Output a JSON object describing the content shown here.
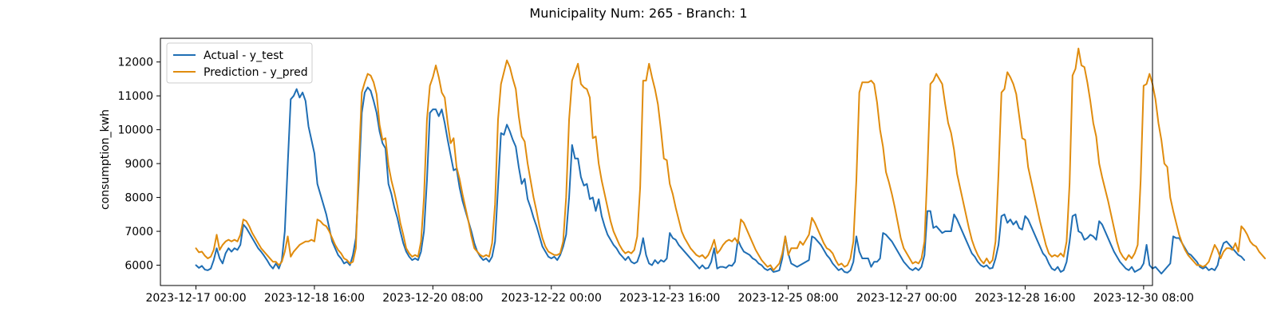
{
  "chart_data": {
    "type": "line",
    "title": "Municipality Num: 265 - Branch: 1",
    "xlabel": "",
    "ylabel": "consumption_kwh",
    "x_start": "2023-12-17 00:00",
    "x_step_hours": 1,
    "xlim_index": [
      -12,
      323
    ],
    "ylim": [
      5400,
      12700
    ],
    "yticks": [
      6000,
      7000,
      8000,
      9000,
      10000,
      11000,
      12000
    ],
    "xticks": [
      {
        "index": 0,
        "label": "2023-12-17 00:00"
      },
      {
        "index": 40,
        "label": "2023-12-18 16:00"
      },
      {
        "index": 80,
        "label": "2023-12-20 08:00"
      },
      {
        "index": 120,
        "label": "2023-12-22 00:00"
      },
      {
        "index": 160,
        "label": "2023-12-23 16:00"
      },
      {
        "index": 200,
        "label": "2023-12-25 08:00"
      },
      {
        "index": 240,
        "label": "2023-12-27 00:00"
      },
      {
        "index": 280,
        "label": "2023-12-28 16:00"
      },
      {
        "index": 320,
        "label": "2023-12-30 08:00"
      },
      {
        "index": 360,
        "label": ""
      }
    ],
    "grid": false,
    "legend": {
      "location": "upper-left"
    },
    "series": [
      {
        "name": "Actual - y_test",
        "color": "#1f6eb4",
        "values": [
          6000,
          5920,
          5980,
          5870,
          5850,
          5900,
          6150,
          6500,
          6200,
          6050,
          6350,
          6500,
          6400,
          6500,
          6450,
          6600,
          7200,
          7100,
          6950,
          6800,
          6650,
          6500,
          6400,
          6280,
          6150,
          6000,
          5900,
          6050,
          5900,
          6150,
          7000,
          9000,
          10900,
          11000,
          11200,
          10950,
          11100,
          10850,
          10100,
          9700,
          9300,
          8400,
          8100,
          7800,
          7500,
          7100,
          6700,
          6500,
          6300,
          6200,
          6050,
          6100,
          6000,
          6300,
          6800,
          8500,
          10500,
          11100,
          11250,
          11150,
          10850,
          10500,
          9950,
          9600,
          9450,
          8400,
          8100,
          7700,
          7400,
          7000,
          6650,
          6400,
          6250,
          6150,
          6200,
          6150,
          6400,
          7000,
          8500,
          10500,
          10600,
          10600,
          10400,
          10600,
          10200,
          9700,
          9250,
          8800,
          8850,
          8300,
          7900,
          7600,
          7300,
          7000,
          6650,
          6400,
          6250,
          6150,
          6200,
          6100,
          6250,
          6700,
          8300,
          9900,
          9850,
          10150,
          9950,
          9700,
          9500,
          8900,
          8400,
          8550,
          7950,
          7700,
          7400,
          7150,
          6850,
          6550,
          6400,
          6250,
          6200,
          6250,
          6150,
          6300,
          6550,
          6900,
          8000,
          9550,
          9150,
          9150,
          8600,
          8350,
          8400,
          7950,
          8000,
          7600,
          7950,
          7450,
          7150,
          6900,
          6750,
          6600,
          6500,
          6350,
          6250,
          6150,
          6250,
          6100,
          6050,
          6100,
          6350,
          6800,
          6300,
          6050,
          6000,
          6150,
          6050,
          6150,
          6100,
          6200,
          6950,
          6800,
          6750,
          6600,
          6500,
          6400,
          6300,
          6200,
          6100,
          6000,
          5900,
          6000,
          5900,
          5920,
          6100,
          6500,
          5900,
          5950,
          5950,
          5920,
          6000,
          5980,
          6100,
          6750,
          6550,
          6400,
          6350,
          6300,
          6200,
          6150,
          6050,
          6000,
          5900,
          5850,
          5900,
          5800,
          5820,
          5850,
          6200,
          6850,
          6350,
          6050,
          6000,
          5950,
          6000,
          6050,
          6100,
          6150,
          6850,
          6800,
          6700,
          6600,
          6450,
          6300,
          6200,
          6050,
          5950,
          5850,
          5900,
          5800,
          5780,
          5850,
          6100,
          6850,
          6400,
          6200,
          6200,
          6200,
          5950,
          6100,
          6100,
          6200,
          6950,
          6900,
          6800,
          6700,
          6550,
          6400,
          6250,
          6100,
          6000,
          5900,
          5850,
          5920,
          5850,
          5950,
          6300,
          7600,
          7600,
          7100,
          7150,
          7050,
          6950,
          7000,
          7000,
          7000,
          7500,
          7350,
          7150,
          6950,
          6750,
          6550,
          6350,
          6250,
          6100,
          6000,
          5950,
          6000,
          5900,
          5920,
          6200,
          6600,
          7450,
          7500,
          7250,
          7350,
          7200,
          7300,
          7100,
          7050,
          7450,
          7350,
          7150,
          6950,
          6750,
          6550,
          6350,
          6250,
          6050,
          5900,
          5850,
          5950,
          5800,
          5850,
          6100,
          6700,
          7450,
          7500,
          7000,
          6950,
          6750,
          6800,
          6900,
          6850,
          6750,
          7300,
          7200,
          7000,
          6800,
          6600,
          6400,
          6250,
          6100,
          6000,
          5900,
          5850,
          5950,
          5800,
          5850,
          5900,
          6050,
          6600,
          6000,
          5900,
          5950,
          5850,
          5750,
          5850,
          5950,
          6050,
          6850,
          6800,
          6800,
          6650,
          6500,
          6350,
          6300,
          6200,
          6100,
          5950,
          5900,
          5950,
          5850,
          5900,
          5850,
          6000,
          6400,
          6650,
          6700,
          6600,
          6500,
          6400,
          6300,
          6250,
          6150
        ]
      },
      {
        "name": "Prediction - y_pred",
        "color": "#e08c0e",
        "values": [
          6500,
          6380,
          6400,
          6280,
          6200,
          6250,
          6450,
          6900,
          6450,
          6600,
          6700,
          6750,
          6700,
          6750,
          6700,
          6900,
          7350,
          7300,
          7150,
          6950,
          6800,
          6650,
          6500,
          6400,
          6300,
          6200,
          6100,
          6100,
          6000,
          6100,
          6400,
          6850,
          6250,
          6400,
          6500,
          6600,
          6650,
          6700,
          6700,
          6750,
          6700,
          7350,
          7300,
          7200,
          7150,
          7000,
          6800,
          6600,
          6450,
          6350,
          6200,
          6150,
          6050,
          6100,
          6500,
          9000,
          11100,
          11400,
          11650,
          11600,
          11400,
          11050,
          10150,
          9700,
          9750,
          8950,
          8500,
          8150,
          7750,
          7250,
          6900,
          6500,
          6350,
          6250,
          6300,
          6250,
          6700,
          8000,
          10300,
          11300,
          11550,
          11900,
          11550,
          11100,
          10950,
          10200,
          9600,
          9750,
          8900,
          8550,
          8100,
          7700,
          7300,
          6850,
          6500,
          6400,
          6300,
          6250,
          6300,
          6250,
          6650,
          7800,
          10300,
          11350,
          11700,
          12050,
          11850,
          11500,
          11200,
          10400,
          9800,
          9650,
          9000,
          8500,
          8000,
          7600,
          7150,
          6800,
          6550,
          6400,
          6350,
          6300,
          6300,
          6350,
          6700,
          8000,
          10300,
          11450,
          11700,
          11950,
          11350,
          11250,
          11200,
          10950,
          9750,
          9800,
          9000,
          8500,
          8100,
          7700,
          7300,
          7000,
          6800,
          6600,
          6450,
          6350,
          6400,
          6350,
          6450,
          6850,
          8300,
          11450,
          11450,
          11950,
          11550,
          11200,
          10750,
          10000,
          9150,
          9100,
          8400,
          8100,
          7700,
          7350,
          7000,
          6800,
          6650,
          6500,
          6400,
          6300,
          6250,
          6300,
          6200,
          6300,
          6500,
          6750,
          6350,
          6450,
          6600,
          6700,
          6750,
          6700,
          6800,
          6650,
          7350,
          7250,
          7050,
          6850,
          6650,
          6450,
          6300,
          6150,
          6050,
          5950,
          6000,
          5850,
          5950,
          6050,
          6350,
          6850,
          6300,
          6500,
          6500,
          6500,
          6700,
          6600,
          6750,
          6900,
          7400,
          7250,
          7050,
          6850,
          6650,
          6500,
          6450,
          6350,
          6150,
          6000,
          6050,
          5950,
          6000,
          6200,
          6700,
          8500,
          11100,
          11400,
          11400,
          11400,
          11450,
          11350,
          10800,
          10000,
          9500,
          8750,
          8450,
          8100,
          7700,
          7250,
          6800,
          6500,
          6350,
          6200,
          6050,
          6100,
          6050,
          6200,
          6700,
          8800,
          11350,
          11450,
          11650,
          11500,
          11350,
          10750,
          10200,
          9900,
          9400,
          8700,
          8300,
          7900,
          7500,
          7100,
          6750,
          6500,
          6300,
          6150,
          6050,
          6200,
          6050,
          6150,
          6700,
          8700,
          11100,
          11200,
          11700,
          11550,
          11350,
          11050,
          10400,
          9750,
          9700,
          8900,
          8500,
          8100,
          7700,
          7300,
          6950,
          6600,
          6350,
          6250,
          6300,
          6250,
          6350,
          6250,
          6700,
          8400,
          11600,
          11800,
          12400,
          11900,
          11850,
          11400,
          10850,
          10200,
          9800,
          9000,
          8600,
          8250,
          7900,
          7500,
          7100,
          6700,
          6400,
          6250,
          6150,
          6300,
          6200,
          6350,
          6600,
          8500,
          11300,
          11350,
          11650,
          11350,
          10900,
          10200,
          9700,
          9000,
          8900,
          8000,
          7600,
          7250,
          6900,
          6650,
          6450,
          6300,
          6200,
          6100,
          6000,
          6000,
          5950,
          6000,
          6100,
          6350,
          6600,
          6450,
          6200,
          6400,
          6500,
          6500,
          6450,
          6650,
          6400,
          7150,
          7050,
          6900,
          6700,
          6600,
          6550,
          6400,
          6300,
          6200
        ]
      }
    ]
  }
}
